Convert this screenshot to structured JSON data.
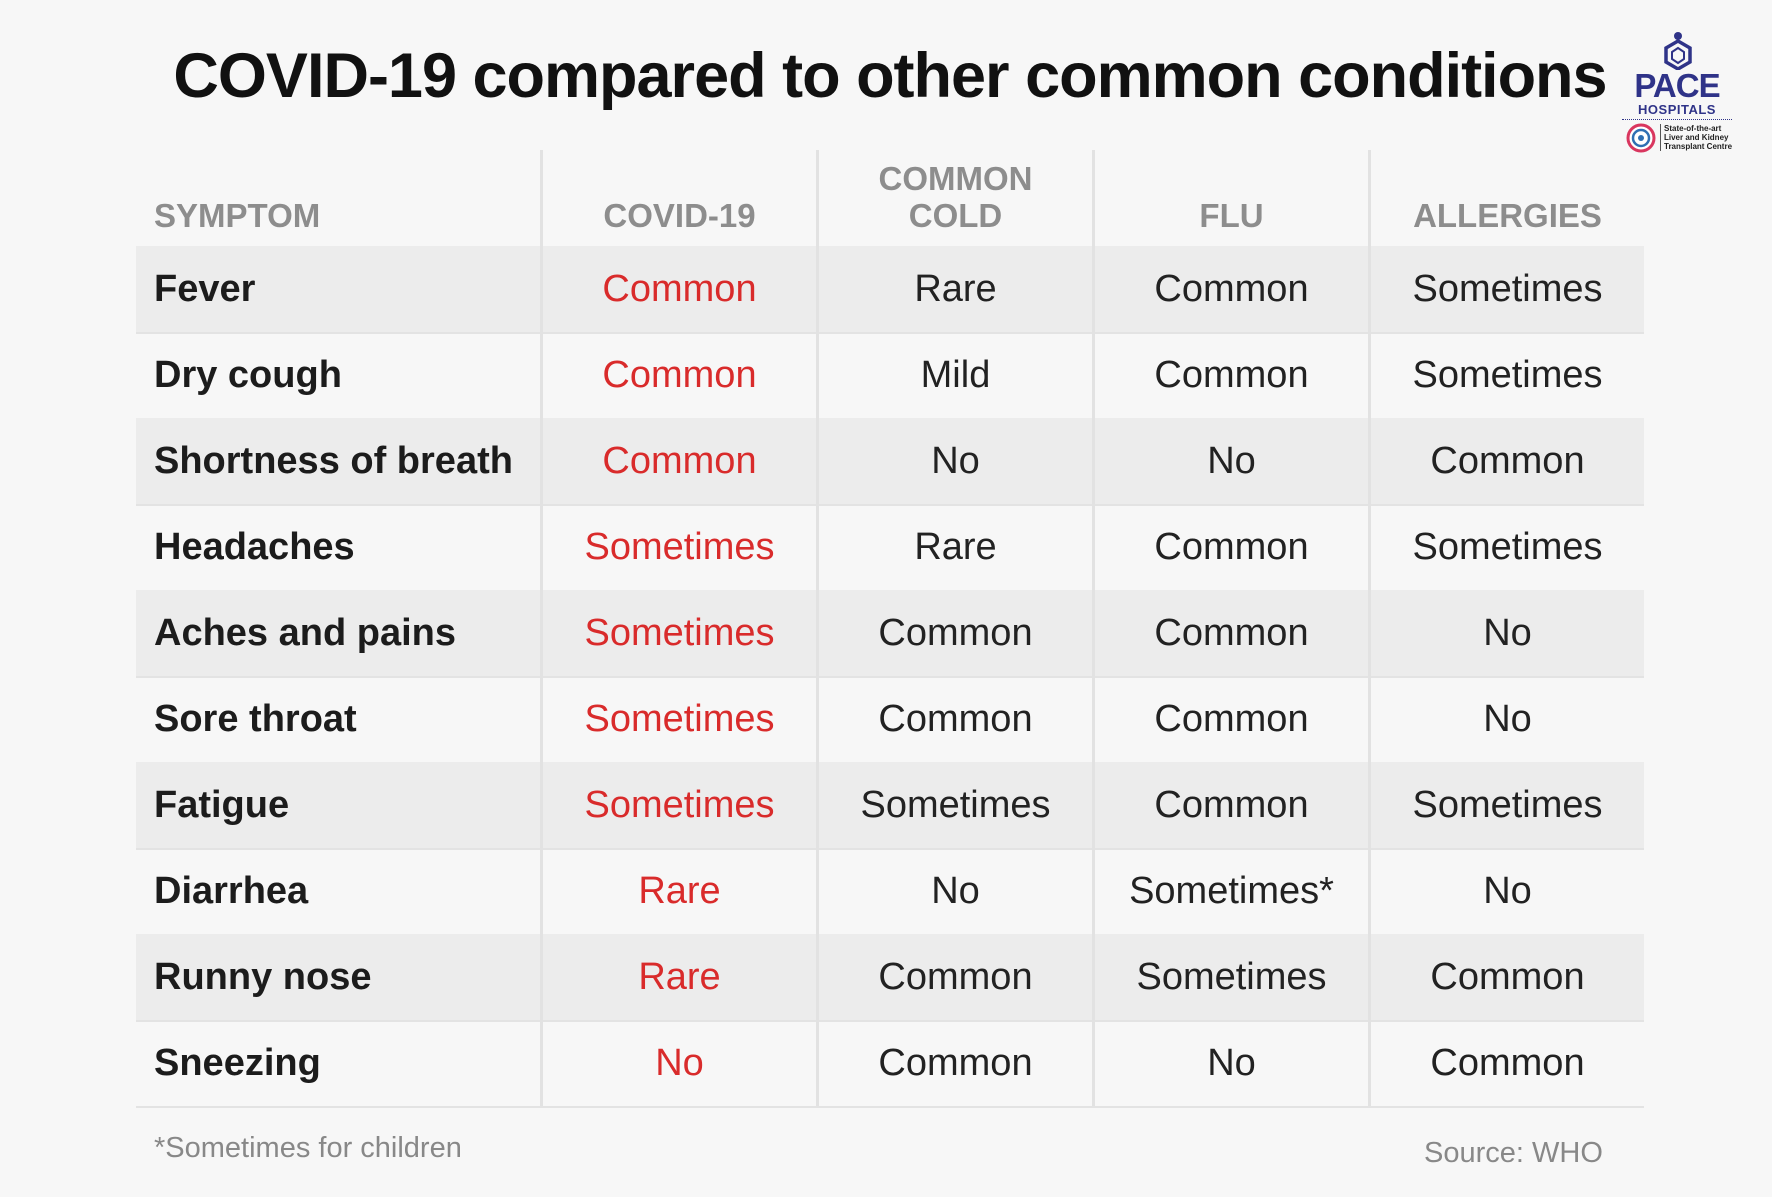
{
  "title": "COVID-19 compared to other common conditions",
  "logo": {
    "name": "PACE",
    "sub": "HOSPITALS",
    "tagline": "State-of-the-art Liver and Kidney Transplant Centre",
    "brand_color": "#2f3388"
  },
  "table": {
    "headers": [
      {
        "line1": "SYMPTOM",
        "line2": ""
      },
      {
        "line1": "COVID-19",
        "line2": ""
      },
      {
        "line1": "COMMON",
        "line2": "COLD"
      },
      {
        "line1": "FLU",
        "line2": ""
      },
      {
        "line1": "ALLERGIES",
        "line2": ""
      }
    ],
    "rows": [
      {
        "symptom": "Fever",
        "covid": "Common",
        "cold": "Rare",
        "flu": "Common",
        "allergies": "Sometimes"
      },
      {
        "symptom": "Dry cough",
        "covid": "Common",
        "cold": "Mild",
        "flu": "Common",
        "allergies": "Sometimes"
      },
      {
        "symptom": "Shortness of breath",
        "covid": "Common",
        "cold": "No",
        "flu": "No",
        "allergies": "Common"
      },
      {
        "symptom": "Headaches",
        "covid": "Sometimes",
        "cold": "Rare",
        "flu": "Common",
        "allergies": "Sometimes"
      },
      {
        "symptom": "Aches and pains",
        "covid": "Sometimes",
        "cold": "Common",
        "flu": "Common",
        "allergies": "No"
      },
      {
        "symptom": "Sore throat",
        "covid": "Sometimes",
        "cold": "Common",
        "flu": "Common",
        "allergies": "No"
      },
      {
        "symptom": "Fatigue",
        "covid": "Sometimes",
        "cold": "Sometimes",
        "flu": "Common",
        "allergies": "Sometimes"
      },
      {
        "symptom": "Diarrhea",
        "covid": "Rare",
        "cold": "No",
        "flu": "Sometimes*",
        "allergies": "No"
      },
      {
        "symptom": "Runny nose",
        "covid": "Rare",
        "cold": "Common",
        "flu": "Sometimes",
        "allergies": "Common"
      },
      {
        "symptom": "Sneezing",
        "covid": "No",
        "cold": "Common",
        "flu": "No",
        "allergies": "Common"
      }
    ]
  },
  "footnote": "*Sometimes for children",
  "source": "Source: WHO",
  "colors": {
    "covid_highlight": "#d92b2b",
    "header_text": "#8d8d8d",
    "row_shade": "#ececec"
  }
}
